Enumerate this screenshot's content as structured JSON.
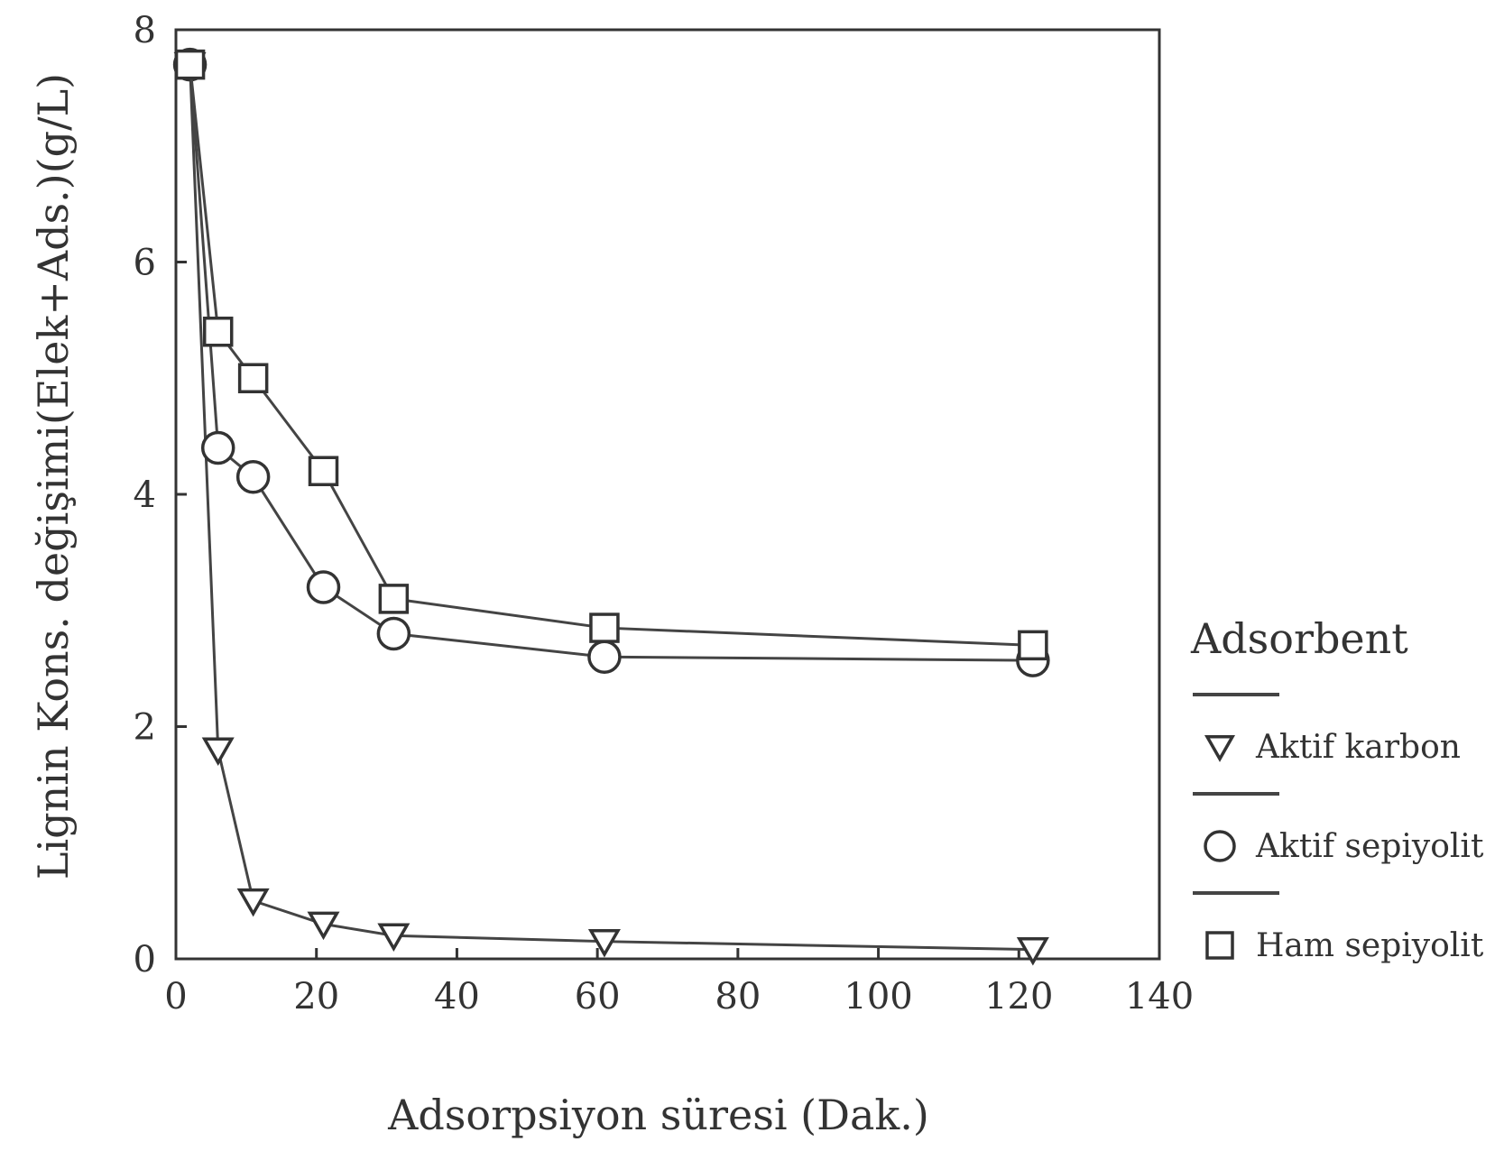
{
  "chart_data": {
    "type": "line",
    "xlabel": "Adsorpsiyon süresi (Dak.)",
    "ylabel": "Lignin Kons. değişimi(Elek+Ads.)(g/L)",
    "xlim": [
      0,
      140
    ],
    "ylim": [
      0,
      8
    ],
    "x_ticks": [
      "0",
      "20",
      "40",
      "60",
      "80",
      "100",
      "120",
      "140"
    ],
    "y_ticks": [
      "0",
      "2",
      "4",
      "6",
      "8"
    ],
    "grid": false,
    "legend_position": "right",
    "legend_title": "Adsorbent",
    "series": [
      {
        "name": "Aktif karbon",
        "marker": "triangle-down",
        "x": [
          2,
          6,
          11,
          21,
          31,
          61,
          122
        ],
        "y": [
          7.7,
          1.8,
          0.5,
          0.3,
          0.2,
          0.15,
          0.08
        ]
      },
      {
        "name": "Aktif sepiyolit",
        "marker": "circle",
        "x": [
          2,
          6,
          11,
          21,
          31,
          61,
          122
        ],
        "y": [
          7.7,
          4.4,
          4.15,
          3.2,
          2.8,
          2.6,
          2.57
        ]
      },
      {
        "name": "Ham sepiyolit",
        "marker": "square",
        "x": [
          2,
          6,
          11,
          21,
          31,
          61,
          122
        ],
        "y": [
          7.7,
          5.4,
          5.0,
          4.2,
          3.1,
          2.85,
          2.7
        ]
      }
    ]
  }
}
